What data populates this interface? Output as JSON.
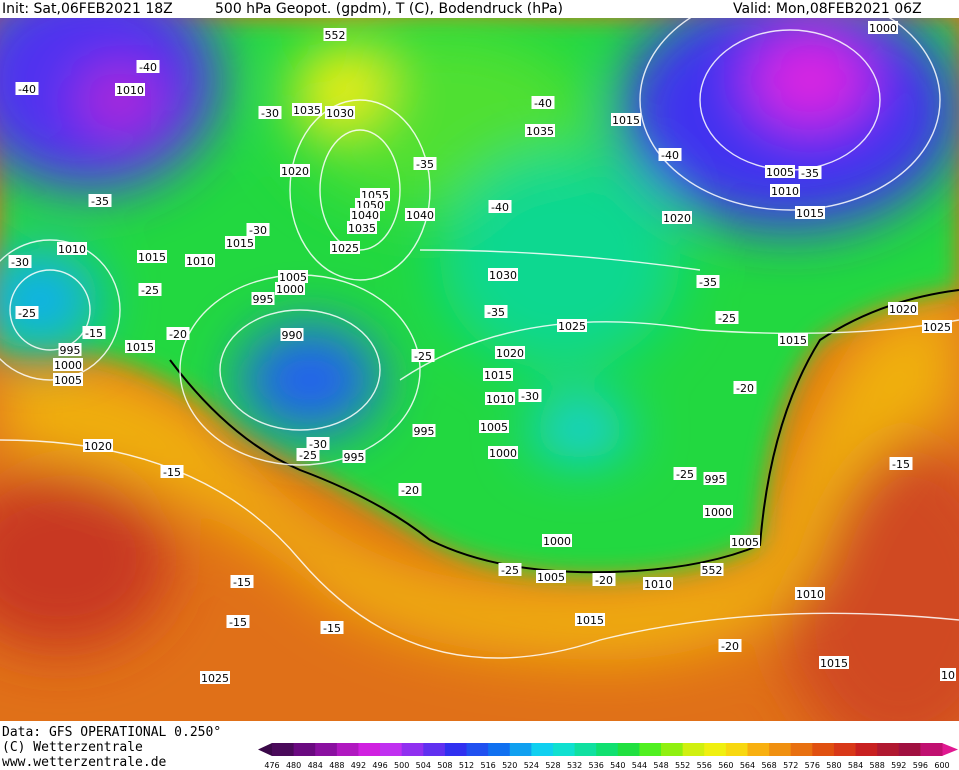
{
  "header": {
    "init": "Init: Sat,06FEB2021 18Z",
    "title": "500 hPa Geopot. (gpdm), T (C), Bodendruck (hPa)",
    "valid": "Valid: Mon,08FEB2021 06Z"
  },
  "footer": {
    "data": "Data: GFS OPERATIONAL 0.250°",
    "copyright": "(C) Wetterzentrale",
    "url": "www.wetterzentrale.de"
  },
  "contour_labels": [
    "1010",
    "-40",
    "-40",
    "1035",
    "1030",
    "-30",
    "1020",
    "-35",
    "1055",
    "1050",
    "1040",
    "1040",
    "1035",
    "1025",
    "-30",
    "1015",
    "1015",
    "1010",
    "1010",
    "-30",
    "-35",
    "-25",
    "-20",
    "1015",
    "995",
    "1000",
    "1005",
    "-25",
    "-15",
    "1005",
    "1000",
    "995",
    "990",
    "1030",
    "-35",
    "-40",
    "-40",
    "1035",
    "1015",
    "-40",
    "1005",
    "-35",
    "1010",
    "1015",
    "1020",
    "1000",
    "1025",
    "1020",
    "1015",
    "1010",
    "-30",
    "1005",
    "1000",
    "995",
    "-25",
    "995",
    "-30",
    "-25",
    "-20",
    "1020",
    "-15",
    "-35",
    "-25",
    "1015",
    "-20",
    "1020",
    "1025",
    "-15",
    "-25",
    "995",
    "1000",
    "1005",
    "1000",
    "-25",
    "1005",
    "-20",
    "1010",
    "552",
    "1010",
    "1015",
    "-15",
    "-15",
    "-15",
    "-20",
    "1015",
    "1025",
    "10",
    "552"
  ],
  "colorbar": {
    "labels": [
      "476",
      "480",
      "484",
      "488",
      "492",
      "496",
      "500",
      "504",
      "508",
      "512",
      "516",
      "520",
      "524",
      "528",
      "532",
      "536",
      "540",
      "544",
      "548",
      "552",
      "556",
      "560",
      "564",
      "568",
      "572",
      "576",
      "580",
      "584",
      "588",
      "592",
      "596",
      "600"
    ],
    "colors": [
      "#4a0a5a",
      "#6a0a80",
      "#8a10a0",
      "#b018c0",
      "#d020e0",
      "#c030f0",
      "#9030f0",
      "#6030f0",
      "#3030f0",
      "#2050f0",
      "#1070f0",
      "#10a0f0",
      "#10d0f0",
      "#10e0d0",
      "#10e0a0",
      "#10e070",
      "#20e040",
      "#50f020",
      "#90f010",
      "#d0f010",
      "#f0f010",
      "#f8d810",
      "#f8b010",
      "#f09010",
      "#e87010",
      "#e05010",
      "#d83818",
      "#c82020",
      "#b01830",
      "#a01040",
      "#c01070"
    ]
  }
}
